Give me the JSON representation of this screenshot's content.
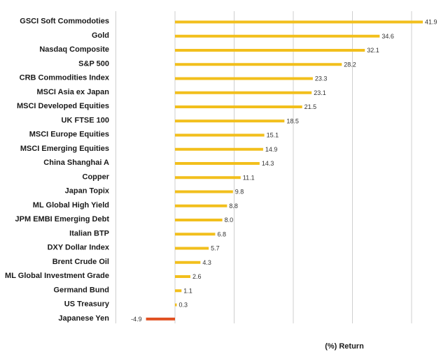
{
  "chart_data": {
    "type": "bar",
    "orientation": "horizontal",
    "categories": [
      "GSCI Soft Commodoties",
      "Gold",
      "Nasdaq Composite",
      "S&P 500",
      "CRB Commodities Index",
      "MSCI Asia ex Japan",
      "MSCI Developed Equities",
      "UK FTSE 100",
      "MSCI Europe Equities",
      "MSCI Emerging  Equities",
      "China Shanghai A",
      "Copper",
      "Japan Topix",
      "ML Global High Yield",
      "JPM EMBI Emerging Debt",
      "Italian BTP",
      "DXY Dollar Index",
      "Brent Crude Oil",
      "ML Global Investment Grade",
      "Germand Bund",
      "US Treasury",
      "Japanese Yen"
    ],
    "values": [
      41.9,
      34.6,
      32.1,
      28.2,
      23.3,
      23.1,
      21.5,
      18.5,
      15.1,
      14.9,
      14.3,
      11.1,
      9.8,
      8.8,
      8.0,
      6.8,
      5.7,
      4.3,
      2.6,
      1.1,
      0.3,
      -4.9
    ],
    "value_labels": [
      "41.9",
      "34.6",
      "32.1",
      "28.2",
      "23.3",
      "23.1",
      "21.5",
      "18.5",
      "15.1",
      "14.9",
      "14.3",
      "11.1",
      "9.8",
      "8.8",
      "8.0",
      "6.8",
      "5.7",
      "4.3",
      "2.6",
      "1.1",
      "0.3",
      "-4.9"
    ],
    "xlabel": "(%) Return",
    "ylabel": "",
    "title": "",
    "xlim": [
      -10,
      40
    ],
    "grid": true,
    "colors": {
      "positive": "#F2BF1C",
      "negative": "#E04E1E",
      "gridline": "#cfcfcf"
    }
  }
}
